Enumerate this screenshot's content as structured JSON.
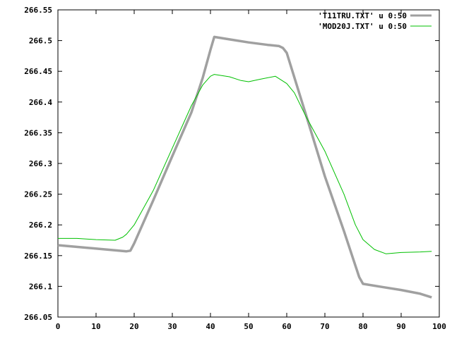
{
  "chart_data": {
    "type": "line",
    "title": "",
    "xlabel": "",
    "ylabel": "",
    "xlim": [
      0,
      100
    ],
    "ylim": [
      266.05,
      266.55
    ],
    "xticks": [
      "0",
      "10",
      "20",
      "30",
      "40",
      "50",
      "60",
      "70",
      "80",
      "90",
      "100"
    ],
    "yticks": [
      "266.05",
      "266.1",
      "266.15",
      "266.2",
      "266.25",
      "266.3",
      "266.35",
      "266.4",
      "266.45",
      "266.5",
      "266.55"
    ],
    "grid": false,
    "legend_position": "top-right",
    "series": [
      {
        "name": "'T11TRU.TXT' u 0:50",
        "color": "#a0a0a0",
        "x": [
          0,
          18,
          19,
          20,
          25,
          30,
          35,
          38,
          40,
          41,
          45,
          50,
          55,
          58,
          59,
          60,
          65,
          70,
          75,
          79,
          80,
          85,
          90,
          95,
          98
        ],
        "y": [
          266.167,
          266.157,
          266.158,
          266.17,
          266.24,
          266.312,
          266.383,
          266.44,
          266.485,
          266.506,
          266.502,
          266.497,
          266.493,
          266.491,
          266.488,
          266.48,
          266.38,
          266.279,
          266.19,
          266.115,
          266.104,
          266.099,
          266.094,
          266.088,
          266.082
        ]
      },
      {
        "name": "'MOD20J.TXT' u 0:50",
        "color": "#00c000",
        "x": [
          0,
          5,
          10,
          15,
          17,
          18,
          20,
          25,
          30,
          35,
          38,
          40,
          41,
          45,
          48,
          50,
          53,
          57,
          60,
          62,
          65,
          70,
          75,
          78,
          80,
          83,
          86,
          90,
          95,
          98
        ],
        "y": [
          266.178,
          266.178,
          266.176,
          266.175,
          266.18,
          266.185,
          266.2,
          266.256,
          266.325,
          266.394,
          266.428,
          266.442,
          266.445,
          266.441,
          266.435,
          266.433,
          266.437,
          266.442,
          266.43,
          266.415,
          266.377,
          266.32,
          266.25,
          266.2,
          266.176,
          266.16,
          266.153,
          266.155,
          266.156,
          266.157
        ]
      }
    ]
  }
}
